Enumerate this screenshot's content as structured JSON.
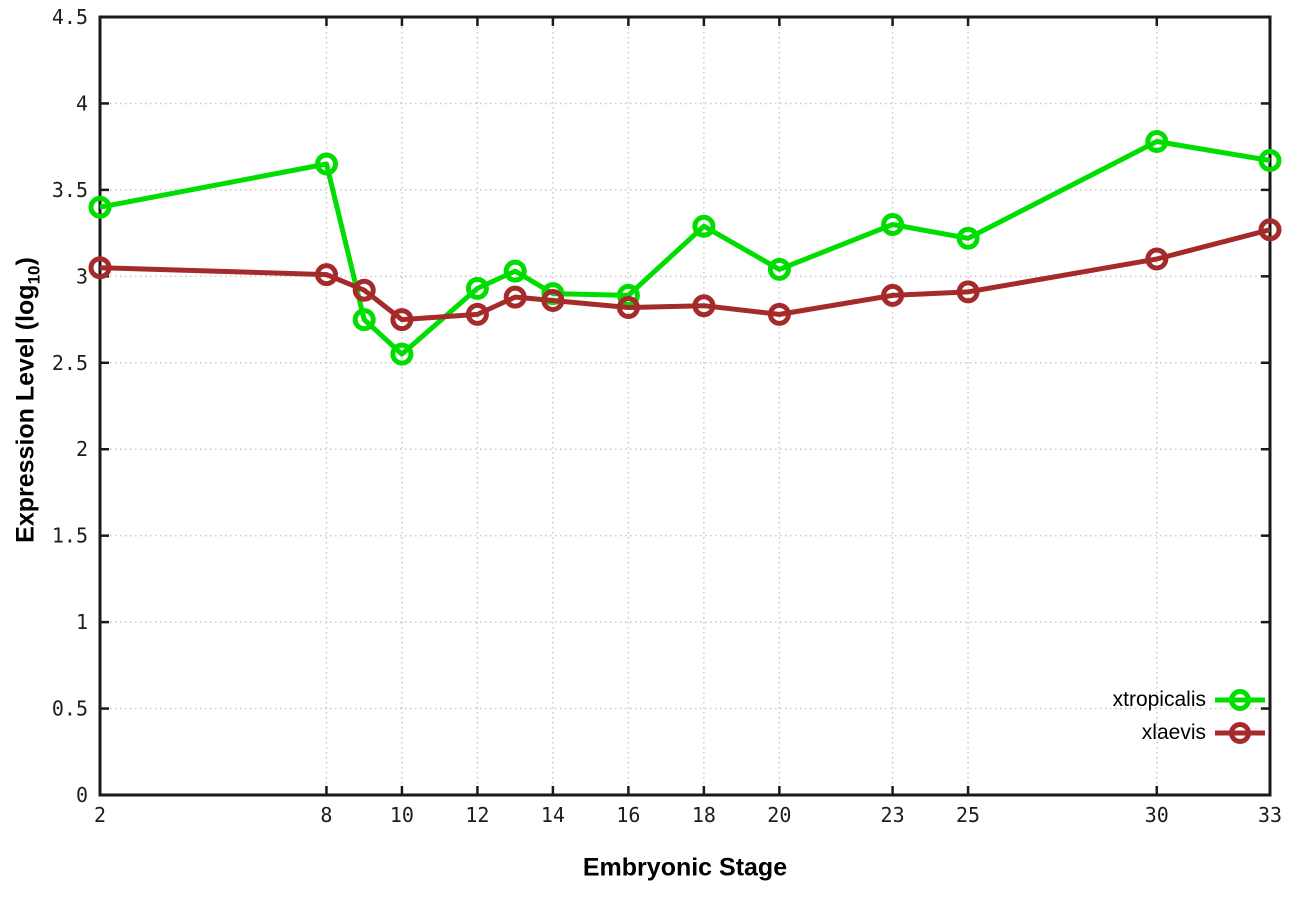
{
  "chart_data": {
    "type": "line",
    "title": "",
    "xlabel": "Embryonic Stage",
    "ylabel": "Expression Level (log10)",
    "ylabel_parts": {
      "main": "Expression Level (log",
      "sub": "10",
      "end": ")"
    },
    "x": [
      2,
      8,
      9,
      10,
      12,
      13,
      14,
      16,
      18,
      20,
      23,
      25,
      30,
      33
    ],
    "series": [
      {
        "name": "xtropicalis",
        "color": "#00dd00",
        "values": [
          3.4,
          3.65,
          2.75,
          2.55,
          2.93,
          3.03,
          2.9,
          2.89,
          3.29,
          3.04,
          3.3,
          3.22,
          3.78,
          3.67
        ]
      },
      {
        "name": "xlaevis",
        "color": "#a52a2a",
        "values": [
          3.05,
          3.01,
          2.92,
          2.75,
          2.78,
          2.88,
          2.86,
          2.82,
          2.83,
          2.78,
          2.89,
          2.91,
          3.1,
          3.27
        ]
      }
    ],
    "x_ticks": [
      2,
      8,
      10,
      12,
      14,
      16,
      18,
      20,
      23,
      25,
      30,
      33
    ],
    "y_ticks": [
      0,
      0.5,
      1,
      1.5,
      2,
      2.5,
      3,
      3.5,
      4,
      4.5
    ],
    "xlim": [
      2,
      33
    ],
    "ylim": [
      0,
      4.5
    ],
    "grid": true,
    "legend_position": "bottom-right",
    "marker": "open-circle"
  },
  "colors": {
    "background": "#ffffff",
    "grid": "#c8c8c8",
    "axis": "#1a1a1a",
    "text": "#1c1c1c"
  }
}
